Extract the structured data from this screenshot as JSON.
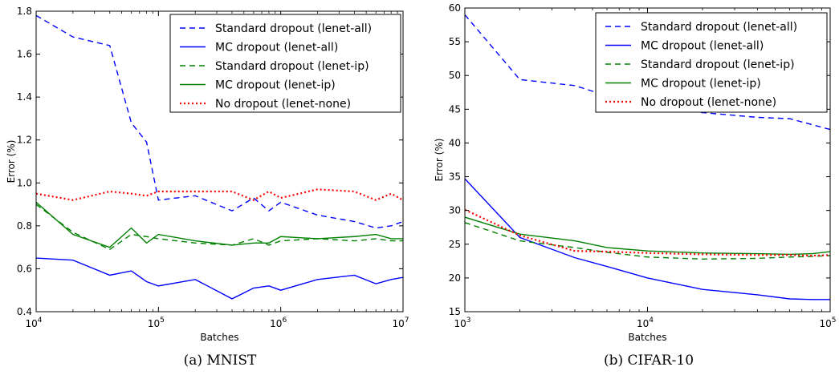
{
  "captions": [
    "(a) MNIST",
    "(b) CIFAR-10"
  ],
  "colors": {
    "blue": "#0000ff",
    "green": "#008000",
    "red": "#ff0000"
  },
  "chart_data": [
    {
      "type": "line",
      "title": "",
      "xlabel": "Batches",
      "ylabel": "Error (%)",
      "xscale": "log",
      "xlim": [
        10000,
        10000000
      ],
      "ylim": [
        0.4,
        1.8
      ],
      "xticks": [
        10000,
        100000,
        1000000,
        10000000
      ],
      "xtick_labels": [
        [
          "10",
          "4"
        ],
        [
          "10",
          "5"
        ],
        [
          "10",
          "6"
        ],
        [
          "10",
          "7"
        ]
      ],
      "yticks": [
        0.4,
        0.6,
        0.8,
        1.0,
        1.2,
        1.4,
        1.6,
        1.8
      ],
      "ytick_labels": [
        "0.4",
        "0.6",
        "0.8",
        "1.0",
        "1.2",
        "1.4",
        "1.6",
        "1.8"
      ],
      "grid": false,
      "legend_position": "top-right",
      "series": [
        {
          "name": "Standard dropout (lenet-all)",
          "color": "#0000ff",
          "style": "dashed",
          "x": [
            10000,
            20000,
            40000,
            60000,
            80000,
            100000,
            200000,
            400000,
            600000,
            800000,
            1000000,
            2000000,
            4000000,
            6000000,
            8000000,
            10000000
          ],
          "y": [
            1.78,
            1.68,
            1.64,
            1.28,
            1.19,
            0.92,
            0.94,
            0.87,
            0.93,
            0.87,
            0.91,
            0.85,
            0.82,
            0.79,
            0.8,
            0.82
          ]
        },
        {
          "name": "MC dropout (lenet-all)",
          "color": "#0000ff",
          "style": "solid",
          "x": [
            10000,
            20000,
            40000,
            60000,
            80000,
            100000,
            200000,
            400000,
            600000,
            800000,
            1000000,
            2000000,
            4000000,
            6000000,
            8000000,
            10000000
          ],
          "y": [
            0.65,
            0.64,
            0.57,
            0.59,
            0.54,
            0.52,
            0.55,
            0.46,
            0.51,
            0.52,
            0.5,
            0.55,
            0.57,
            0.53,
            0.55,
            0.56
          ]
        },
        {
          "name": "Standard dropout (lenet-ip)",
          "color": "#008000",
          "style": "dashed",
          "x": [
            10000,
            20000,
            40000,
            60000,
            80000,
            100000,
            200000,
            400000,
            600000,
            800000,
            1000000,
            2000000,
            4000000,
            6000000,
            8000000,
            10000000
          ],
          "y": [
            0.9,
            0.77,
            0.69,
            0.76,
            0.75,
            0.74,
            0.72,
            0.71,
            0.74,
            0.71,
            0.73,
            0.74,
            0.73,
            0.74,
            0.73,
            0.73
          ]
        },
        {
          "name": "MC dropout (lenet-ip)",
          "color": "#008000",
          "style": "solid",
          "x": [
            10000,
            20000,
            40000,
            60000,
            80000,
            100000,
            200000,
            400000,
            600000,
            800000,
            1000000,
            2000000,
            4000000,
            6000000,
            8000000,
            10000000
          ],
          "y": [
            0.91,
            0.76,
            0.7,
            0.79,
            0.72,
            0.76,
            0.73,
            0.71,
            0.72,
            0.72,
            0.75,
            0.74,
            0.75,
            0.76,
            0.74,
            0.74
          ]
        },
        {
          "name": "No dropout (lenet-none)",
          "color": "#ff0000",
          "style": "dotted",
          "x": [
            10000,
            20000,
            40000,
            60000,
            80000,
            100000,
            200000,
            400000,
            600000,
            800000,
            1000000,
            2000000,
            4000000,
            6000000,
            8000000,
            10000000
          ],
          "y": [
            0.95,
            0.92,
            0.96,
            0.95,
            0.94,
            0.96,
            0.96,
            0.96,
            0.92,
            0.96,
            0.93,
            0.97,
            0.96,
            0.92,
            0.95,
            0.92
          ]
        }
      ]
    },
    {
      "type": "line",
      "title": "",
      "xlabel": "Batches",
      "ylabel": "Error (%)",
      "xscale": "log",
      "xlim": [
        1000,
        100000
      ],
      "ylim": [
        15,
        60
      ],
      "xticks": [
        1000,
        10000,
        100000
      ],
      "xtick_labels": [
        [
          "10",
          "3"
        ],
        [
          "10",
          "4"
        ],
        [
          "10",
          "5"
        ]
      ],
      "yticks": [
        15,
        20,
        25,
        30,
        35,
        40,
        45,
        50,
        55,
        60
      ],
      "ytick_labels": [
        "15",
        "20",
        "25",
        "30",
        "35",
        "40",
        "45",
        "50",
        "55",
        "60"
      ],
      "grid": false,
      "legend_position": "top-right",
      "series": [
        {
          "name": "Standard dropout (lenet-all)",
          "color": "#0000ff",
          "style": "dashed",
          "x": [
            1000,
            2000,
            4000,
            6000,
            10000,
            20000,
            40000,
            60000,
            80000,
            100000
          ],
          "y": [
            59,
            49.4,
            48.5,
            47.0,
            45.5,
            44.5,
            43.8,
            43.6,
            42.7,
            42.0
          ]
        },
        {
          "name": "MC dropout (lenet-all)",
          "color": "#0000ff",
          "style": "solid",
          "x": [
            1000,
            2000,
            4000,
            6000,
            10000,
            20000,
            40000,
            60000,
            80000,
            100000
          ],
          "y": [
            34.7,
            26.0,
            23.0,
            21.7,
            20.0,
            18.3,
            17.5,
            16.9,
            16.8,
            16.8
          ]
        },
        {
          "name": "Standard dropout (lenet-ip)",
          "color": "#008000",
          "style": "dashed",
          "x": [
            1000,
            2000,
            4000,
            6000,
            10000,
            20000,
            40000,
            60000,
            80000,
            100000
          ],
          "y": [
            28.2,
            25.5,
            24.5,
            23.8,
            23.1,
            22.8,
            22.9,
            23.1,
            23.2,
            23.3
          ]
        },
        {
          "name": "MC dropout (lenet-ip)",
          "color": "#008000",
          "style": "solid",
          "x": [
            1000,
            2000,
            4000,
            6000,
            10000,
            20000,
            40000,
            60000,
            80000,
            100000
          ],
          "y": [
            29.0,
            26.5,
            25.5,
            24.5,
            24.0,
            23.7,
            23.6,
            23.5,
            23.6,
            23.9
          ]
        },
        {
          "name": "No dropout (lenet-none)",
          "color": "#ff0000",
          "style": "dotted",
          "x": [
            1000,
            2000,
            4000,
            6000,
            10000,
            20000,
            40000,
            60000,
            80000,
            100000
          ],
          "y": [
            30.1,
            26.3,
            24.0,
            23.9,
            23.7,
            23.5,
            23.4,
            23.4,
            23.3,
            23.4
          ]
        }
      ]
    }
  ]
}
